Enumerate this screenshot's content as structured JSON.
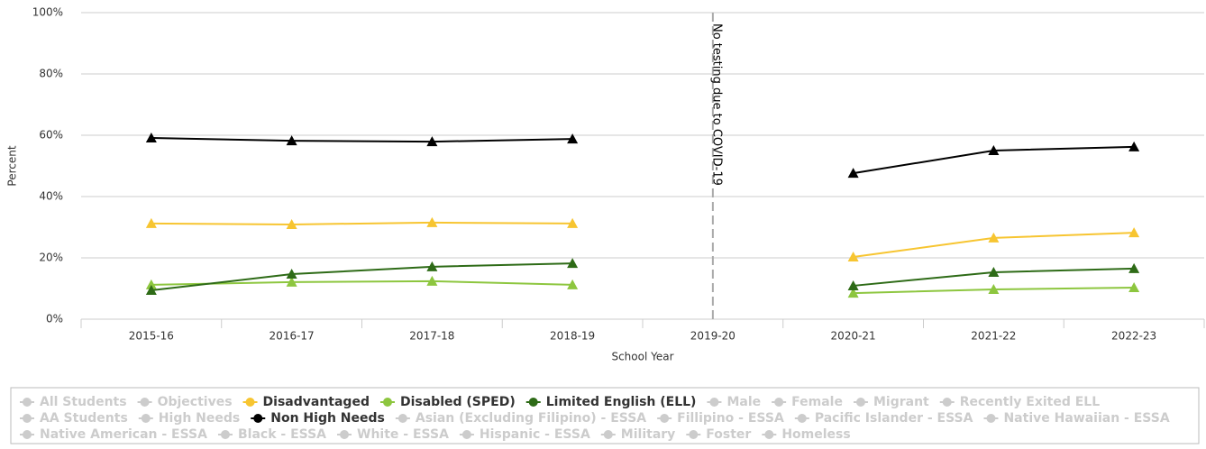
{
  "chart_data": {
    "type": "line",
    "y_label": "Percent",
    "x_label": "School Year",
    "annotation": "No testing due to COVID-19",
    "annotation_category": 4,
    "categories": [
      "2015-16",
      "2016-17",
      "2017-18",
      "2018-19",
      "2019-20",
      "2020-21",
      "2021-22",
      "2022-23"
    ],
    "ylim": [
      0,
      100
    ],
    "yticks": [
      {
        "value": 0,
        "label": "0%"
      },
      {
        "value": 20,
        "label": "20%"
      },
      {
        "value": 40,
        "label": "40%"
      },
      {
        "value": 60,
        "label": "60%"
      },
      {
        "value": 80,
        "label": "80%"
      },
      {
        "value": 100,
        "label": "100%"
      }
    ],
    "grid": true,
    "marker": "triangle",
    "series": [
      {
        "name": "All Students",
        "visible": false,
        "values": [
          null,
          null,
          null,
          null,
          null,
          null,
          null,
          null
        ]
      },
      {
        "name": "Objectives",
        "visible": false,
        "values": [
          null,
          null,
          null,
          null,
          null,
          null,
          null,
          null
        ]
      },
      {
        "name": "Disadvantaged",
        "visible": true,
        "color": "#f7c531",
        "values": [
          31.2,
          30.9,
          31.5,
          31.2,
          null,
          20.3,
          26.5,
          28.2
        ]
      },
      {
        "name": "Disabled (SPED)",
        "visible": true,
        "color": "#8dc63f",
        "values": [
          11.2,
          12.1,
          12.4,
          11.2,
          null,
          8.5,
          9.7,
          10.3
        ]
      },
      {
        "name": "Limited English (ELL)",
        "visible": true,
        "color": "#2e6b17",
        "values": [
          9.4,
          14.7,
          17.1,
          18.2,
          null,
          10.9,
          15.3,
          16.5
        ]
      },
      {
        "name": "Male",
        "visible": false,
        "values": [
          null,
          null,
          null,
          null,
          null,
          null,
          null,
          null
        ]
      },
      {
        "name": "Female",
        "visible": false,
        "values": [
          null,
          null,
          null,
          null,
          null,
          null,
          null,
          null
        ]
      },
      {
        "name": "Migrant",
        "visible": false,
        "values": [
          null,
          null,
          null,
          null,
          null,
          null,
          null,
          null
        ]
      },
      {
        "name": "Recently Exited ELL",
        "visible": false,
        "values": [
          null,
          null,
          null,
          null,
          null,
          null,
          null,
          null
        ]
      },
      {
        "name": "AA Students",
        "visible": false,
        "values": [
          null,
          null,
          null,
          null,
          null,
          null,
          null,
          null
        ]
      },
      {
        "name": "High Needs",
        "visible": false,
        "values": [
          null,
          null,
          null,
          null,
          null,
          null,
          null,
          null
        ]
      },
      {
        "name": "Non High Needs",
        "visible": true,
        "color": "#000000",
        "values": [
          59.1,
          58.2,
          57.9,
          58.8,
          null,
          47.6,
          55.0,
          56.2
        ]
      },
      {
        "name": "Asian (Excluding Filipino) - ESSA",
        "visible": false,
        "values": [
          null,
          null,
          null,
          null,
          null,
          null,
          null,
          null
        ]
      },
      {
        "name": "Fillipino - ESSA",
        "visible": false,
        "values": [
          null,
          null,
          null,
          null,
          null,
          null,
          null,
          null
        ]
      },
      {
        "name": "Pacific Islander - ESSA",
        "visible": false,
        "values": [
          null,
          null,
          null,
          null,
          null,
          null,
          null,
          null
        ]
      },
      {
        "name": "Native Hawaiian - ESSA",
        "visible": false,
        "values": [
          null,
          null,
          null,
          null,
          null,
          null,
          null,
          null
        ]
      },
      {
        "name": "Native American - ESSA",
        "visible": false,
        "values": [
          null,
          null,
          null,
          null,
          null,
          null,
          null,
          null
        ]
      },
      {
        "name": "Black - ESSA",
        "visible": false,
        "values": [
          null,
          null,
          null,
          null,
          null,
          null,
          null,
          null
        ]
      },
      {
        "name": "White - ESSA",
        "visible": false,
        "values": [
          null,
          null,
          null,
          null,
          null,
          null,
          null,
          null
        ]
      },
      {
        "name": "Hispanic - ESSA",
        "visible": false,
        "values": [
          null,
          null,
          null,
          null,
          null,
          null,
          null,
          null
        ]
      },
      {
        "name": "Military",
        "visible": false,
        "values": [
          null,
          null,
          null,
          null,
          null,
          null,
          null,
          null
        ]
      },
      {
        "name": "Foster",
        "visible": false,
        "values": [
          null,
          null,
          null,
          null,
          null,
          null,
          null,
          null
        ]
      },
      {
        "name": "Homeless",
        "visible": false,
        "values": [
          null,
          null,
          null,
          null,
          null,
          null,
          null,
          null
        ]
      }
    ]
  }
}
